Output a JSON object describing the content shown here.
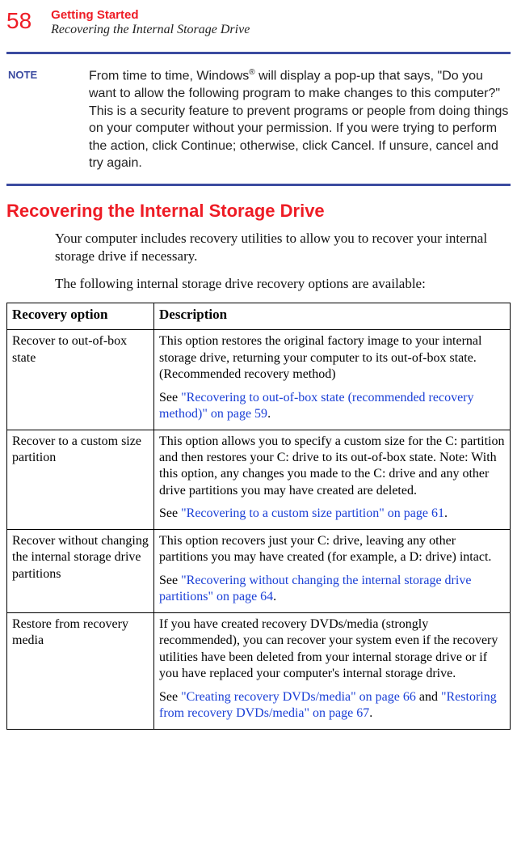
{
  "pageNumber": "58",
  "chapterTitle": "Getting Started",
  "sectionSubtitle": "Recovering the Internal Storage Drive",
  "noteLabel": "NOTE",
  "noteTextBefore": "From time to time, Windows",
  "noteSup": "®",
  "noteTextAfter": " will display a pop-up that says, \"Do you want to allow the following program to make changes to this computer?\" This is a security feature to prevent programs or people from doing things on your computer without your permission. If you were trying to perform the action, click Continue; otherwise, click Cancel. If unsure, cancel and try again.",
  "sectionHeading": "Recovering the Internal Storage Drive",
  "bodyParagraph1": "Your computer includes recovery utilities to allow you to recover your internal storage drive if necessary.",
  "bodyParagraph2": "The following internal storage drive recovery options are available:",
  "table": {
    "headers": {
      "option": "Recovery option",
      "description": "Description"
    },
    "rows": [
      {
        "option": "Recover to out-of-box state",
        "descMain": "This option restores the original factory image to your internal storage drive, returning your computer to its out-of-box state. (Recommended recovery method)",
        "seePrefix": "See ",
        "seeLink": "\"Recovering to out-of-box state (recommended recovery method)\" on page 59",
        "seeSuffix": "."
      },
      {
        "option": "Recover to a custom size partition",
        "descMain": "This option allows you to specify a custom size for the C: partition and then restores your C: drive to its out-of-box state. Note: With this option, any changes you made to the C: drive and any other drive partitions you may have created are deleted.",
        "seePrefix": "See ",
        "seeLink": "\"Recovering to a custom size partition\" on page 61",
        "seeSuffix": "."
      },
      {
        "option": "Recover without changing the internal storage drive partitions",
        "descMain": "This option recovers just your C: drive, leaving any other partitions you may have created (for example, a D: drive) intact.",
        "seePrefix": "See ",
        "seeLink": "\"Recovering without changing the internal storage drive partitions\" on page 64",
        "seeSuffix": "."
      },
      {
        "option": "Restore from recovery media",
        "descMain": "If you have created recovery DVDs/media (strongly recommended), you can recover your system even if the recovery utilities have been deleted from your internal storage drive or if you have replaced your computer's internal storage drive.",
        "seePrefix": "See ",
        "seeLink": "\"Creating recovery DVDs/media\" on page 66",
        "seeMid": " and ",
        "seeLink2": "\"Restoring from recovery DVDs/media\" on page 67",
        "seeSuffix": "."
      }
    ]
  }
}
